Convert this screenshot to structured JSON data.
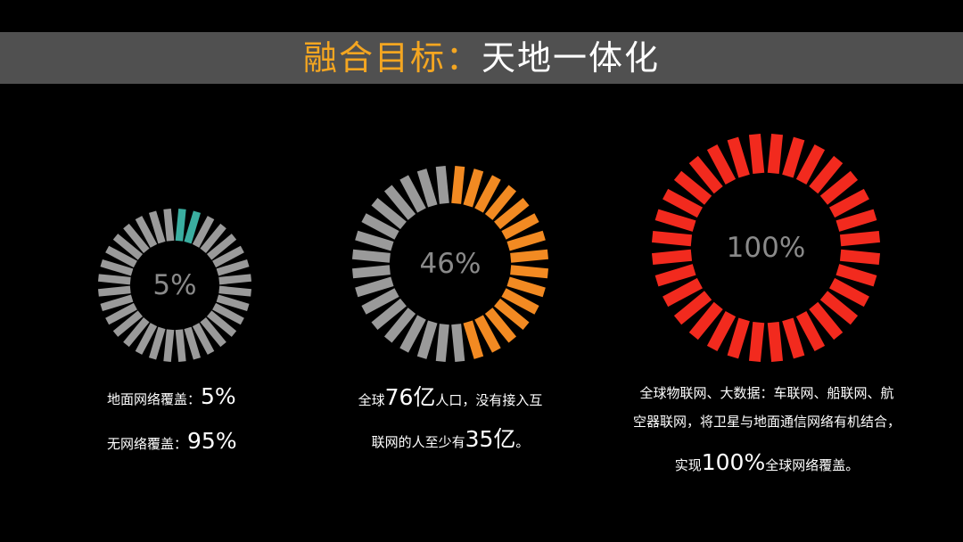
{
  "title": {
    "highlight": "融合目标：",
    "rest": "天地一体化",
    "highlight_color": "#f4a621"
  },
  "chart_data": [
    {
      "type": "pie",
      "label": "5%",
      "value_percent": 5,
      "colors": {
        "filled": "#3aaea0",
        "empty": "#9a9a9a"
      }
    },
    {
      "type": "pie",
      "label": "46%",
      "value_percent": 46,
      "colors": {
        "filled": "#f28a22",
        "empty": "#9a9a9a"
      }
    },
    {
      "type": "pie",
      "label": "100%",
      "value_percent": 100,
      "colors": {
        "filled": "#f22a1e",
        "empty": "#9a9a9a"
      }
    }
  ],
  "captions": {
    "left": {
      "line1_text": "地面网络覆盖：",
      "line1_value": "5%",
      "line2_text": "无网络覆盖：",
      "line2_value": "95%"
    },
    "center": {
      "line1_a": "全球",
      "line1_num": "76亿",
      "line1_b": "人口，没有接入互",
      "line2_a": "联网的人至少有",
      "line2_num": "35亿",
      "line2_b": "。"
    },
    "right": {
      "line1": "全球物联网、大数据：车联网、船联网、航",
      "line2": "空器联网，将卫星与地面通信网络有机结合，",
      "line3_a": "实现",
      "line3_num": "100%",
      "line3_b": "全球网络覆盖。"
    }
  }
}
